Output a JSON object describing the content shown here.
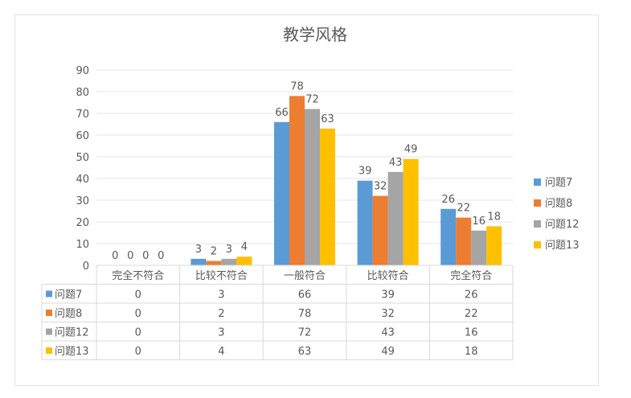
{
  "chart_data": {
    "type": "bar",
    "title": "教学风格",
    "categories": [
      "完全不符合",
      "比较不符合",
      "一般符合",
      "比较符合",
      "完全符合"
    ],
    "series": [
      {
        "name": "问题7",
        "color": "#5B9BD5",
        "values": [
          0,
          3,
          66,
          39,
          26
        ]
      },
      {
        "name": "问题8",
        "color": "#ED7D31",
        "values": [
          0,
          2,
          78,
          32,
          22
        ]
      },
      {
        "name": "问题12",
        "color": "#A5A5A5",
        "values": [
          0,
          3,
          72,
          43,
          16
        ]
      },
      {
        "name": "问题13",
        "color": "#FFC000",
        "values": [
          0,
          4,
          63,
          49,
          18
        ]
      }
    ],
    "ylim": [
      0,
      90
    ],
    "yticks": [
      0,
      10,
      20,
      30,
      40,
      50,
      60,
      70,
      80,
      90
    ],
    "grid": true,
    "legend": "right",
    "data_table": true
  }
}
